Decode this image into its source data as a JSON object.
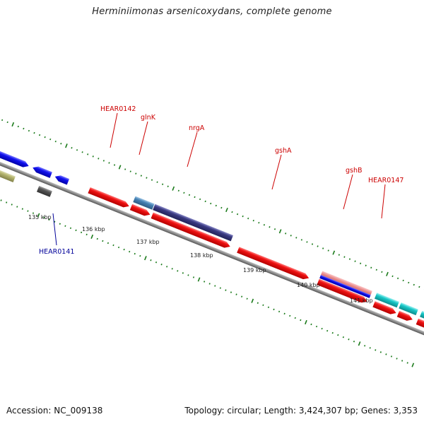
{
  "title": "Herminiimonas arsenicoxydans, complete genome",
  "footer": {
    "accession": "Accession: NC_009138",
    "topology": "Topology: circular; Length: 3,424,307 bp; Genes: 3,353"
  },
  "scale_labels": [
    "135 kbp",
    "136 kbp",
    "137 kbp",
    "138 kbp",
    "139 kbp",
    "140 kbp",
    "141 kbp"
  ],
  "gene_labels": [
    {
      "text": "HEAR0142",
      "color": "#cc0000"
    },
    {
      "text": "glnK",
      "color": "#cc0000"
    },
    {
      "text": "nrgA",
      "color": "#cc0000"
    },
    {
      "text": "gshA",
      "color": "#cc0000"
    },
    {
      "text": "gshB",
      "color": "#cc0000"
    },
    {
      "text": "HEAR0147",
      "color": "#cc0000"
    },
    {
      "text": "HEAR0141",
      "color": "#000099"
    }
  ],
  "colors": {
    "red": "#ee1111",
    "blue": "#1111ee",
    "navy": "#3a3a82",
    "steel": "#4682b4",
    "cyan": "#19c8c8",
    "olive": "#b4b46e",
    "pink": "#e88888",
    "gray": "#555555",
    "tick": "#1a7a1a"
  }
}
